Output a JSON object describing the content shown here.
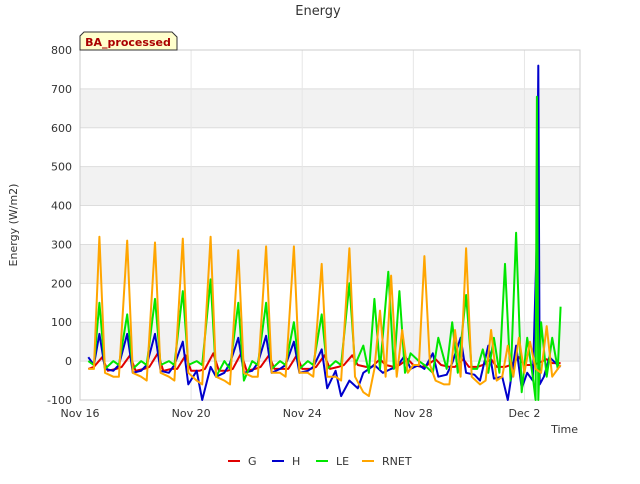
{
  "chart_data": {
    "type": "line",
    "title": "Energy",
    "xlabel": "Time",
    "ylabel": "Energy (W/m2)",
    "badge": "BA_processed",
    "xlim": [
      16,
      34
    ],
    "ylim": [
      -100,
      800
    ],
    "x_ticks": [
      {
        "value": 16,
        "label": "Nov 16"
      },
      {
        "value": 20,
        "label": "Nov 20"
      },
      {
        "value": 24,
        "label": "Nov 24"
      },
      {
        "value": 28,
        "label": "Nov 28"
      },
      {
        "value": 32,
        "label": "Dec 2"
      }
    ],
    "y_ticks": [
      -100,
      0,
      100,
      200,
      300,
      400,
      500,
      600,
      700,
      800
    ],
    "grid": true,
    "banded_background": true,
    "legend_position": "bottom",
    "series": [
      {
        "name": "G",
        "color": "#e00000",
        "legend_label": "G",
        "x": [
          16.3,
          16.5,
          16.8,
          17.0,
          17.3,
          17.5,
          17.8,
          18.0,
          18.3,
          18.5,
          18.8,
          19.0,
          19.3,
          19.5,
          19.8,
          20.0,
          20.3,
          20.5,
          20.8,
          21.0,
          21.3,
          21.5,
          21.8,
          22.0,
          22.3,
          22.5,
          22.8,
          23.0,
          23.3,
          23.5,
          23.8,
          24.0,
          24.3,
          24.5,
          24.8,
          25.0,
          25.3,
          25.5,
          25.8,
          26.0,
          26.3,
          26.5,
          26.8,
          27.0,
          27.3,
          27.5,
          27.8,
          28.0,
          28.3,
          28.5,
          28.8,
          29.0,
          29.3,
          29.5,
          29.8,
          30.0,
          30.3,
          30.5,
          30.8,
          31.0,
          31.3,
          31.5,
          31.8,
          32.0,
          32.3,
          32.5,
          32.8,
          33.0,
          33.3
        ],
        "y": [
          -20,
          -15,
          10,
          -25,
          -20,
          -15,
          15,
          -25,
          -20,
          -15,
          20,
          -25,
          -20,
          -20,
          15,
          -25,
          -25,
          -20,
          20,
          -25,
          -25,
          -20,
          20,
          -25,
          -20,
          -15,
          15,
          -20,
          -20,
          -20,
          15,
          -20,
          -20,
          -15,
          15,
          -20,
          -15,
          -10,
          15,
          -10,
          -15,
          -15,
          5,
          -10,
          -15,
          -10,
          5,
          -10,
          -15,
          -10,
          5,
          -10,
          -15,
          -15,
          5,
          -15,
          -15,
          -10,
          5,
          -15,
          -15,
          -10,
          10,
          -10,
          -10,
          -5,
          5,
          -5,
          -5
        ]
      },
      {
        "name": "H",
        "color": "#0000cc",
        "legend_label": "H",
        "x": [
          16.3,
          16.5,
          16.7,
          16.9,
          17.2,
          17.4,
          17.7,
          17.9,
          18.2,
          18.4,
          18.7,
          18.9,
          19.2,
          19.4,
          19.7,
          19.9,
          20.2,
          20.4,
          20.7,
          20.9,
          21.2,
          21.4,
          21.7,
          21.9,
          22.2,
          22.4,
          22.7,
          22.9,
          23.2,
          23.4,
          23.7,
          23.9,
          24.2,
          24.4,
          24.7,
          24.9,
          25.2,
          25.4,
          25.7,
          26.0,
          26.2,
          26.4,
          26.6,
          26.9,
          27.2,
          27.4,
          27.7,
          27.9,
          28.2,
          28.4,
          28.7,
          28.9,
          29.2,
          29.4,
          29.7,
          29.9,
          30.2,
          30.4,
          30.7,
          30.9,
          31.2,
          31.4,
          31.7,
          31.9,
          32.1,
          32.3,
          32.45,
          32.5,
          32.55,
          32.7,
          32.9,
          33.2,
          33.3
        ],
        "y": [
          10,
          -10,
          70,
          -20,
          -25,
          -10,
          70,
          -30,
          -25,
          -10,
          70,
          -25,
          -30,
          -10,
          50,
          -60,
          -25,
          -100,
          -15,
          -40,
          -30,
          -5,
          60,
          -30,
          -25,
          -5,
          65,
          -30,
          -20,
          -10,
          50,
          -30,
          -25,
          -15,
          30,
          -70,
          -25,
          -90,
          -50,
          -70,
          -30,
          -20,
          -10,
          -30,
          -20,
          -15,
          15,
          -20,
          -10,
          -20,
          20,
          -40,
          -35,
          -5,
          60,
          -30,
          -35,
          -50,
          40,
          -45,
          -40,
          -100,
          40,
          -70,
          -30,
          -50,
          320,
          760,
          -60,
          -40,
          10,
          -10,
          -15
        ]
      },
      {
        "name": "LE",
        "color": "#00e600",
        "legend_label": "LE",
        "x": [
          16.3,
          16.5,
          16.7,
          16.9,
          17.2,
          17.4,
          17.7,
          17.9,
          18.2,
          18.4,
          18.7,
          18.9,
          19.2,
          19.4,
          19.7,
          19.9,
          20.2,
          20.4,
          20.7,
          20.9,
          21.2,
          21.4,
          21.7,
          21.9,
          22.2,
          22.4,
          22.7,
          22.9,
          23.2,
          23.4,
          23.7,
          23.9,
          24.2,
          24.4,
          24.7,
          24.9,
          25.2,
          25.4,
          25.7,
          25.9,
          26.2,
          26.4,
          26.6,
          26.8,
          27.1,
          27.3,
          27.5,
          27.7,
          27.9,
          28.2,
          28.4,
          28.7,
          28.9,
          29.2,
          29.4,
          29.6,
          29.9,
          30.1,
          30.3,
          30.5,
          30.7,
          30.9,
          31.1,
          31.3,
          31.5,
          31.7,
          31.9,
          32.1,
          32.3,
          32.4,
          32.45,
          32.5,
          32.6,
          32.8,
          33.0,
          33.2,
          33.3
        ],
        "y": [
          0,
          -10,
          150,
          -20,
          0,
          -10,
          120,
          -20,
          0,
          -10,
          160,
          -10,
          0,
          -10,
          180,
          -10,
          0,
          -10,
          210,
          -40,
          0,
          -20,
          150,
          -50,
          0,
          -10,
          150,
          -20,
          0,
          -10,
          100,
          -20,
          0,
          -10,
          120,
          -20,
          0,
          -10,
          200,
          -10,
          40,
          -30,
          160,
          -20,
          230,
          -20,
          180,
          -30,
          20,
          0,
          -10,
          -30,
          60,
          -20,
          100,
          -30,
          170,
          -20,
          -20,
          30,
          -30,
          60,
          -30,
          250,
          -50,
          330,
          -80,
          60,
          -40,
          -100,
          680,
          -100,
          100,
          -40,
          60,
          -20,
          140
        ]
      },
      {
        "name": "RNET",
        "color": "#ffa500",
        "legend_label": "RNET",
        "x": [
          16.3,
          16.5,
          16.7,
          16.9,
          17.2,
          17.4,
          17.7,
          17.9,
          18.2,
          18.4,
          18.7,
          18.9,
          19.2,
          19.4,
          19.7,
          19.9,
          20.2,
          20.4,
          20.7,
          20.9,
          21.2,
          21.4,
          21.7,
          21.9,
          22.2,
          22.4,
          22.7,
          22.9,
          23.2,
          23.4,
          23.7,
          23.9,
          24.2,
          24.4,
          24.7,
          24.9,
          25.2,
          25.4,
          25.7,
          25.9,
          26.2,
          26.4,
          26.6,
          26.8,
          27.0,
          27.2,
          27.4,
          27.6,
          27.8,
          28.0,
          28.2,
          28.4,
          28.6,
          28.8,
          29.1,
          29.3,
          29.5,
          29.7,
          29.9,
          30.1,
          30.4,
          30.6,
          30.8,
          31.0,
          31.2,
          31.4,
          31.6,
          31.8,
          32.0,
          32.2,
          32.4,
          32.6,
          32.8,
          33.0,
          33.3
        ],
        "y": [
          -20,
          -20,
          320,
          -30,
          -40,
          -40,
          310,
          -30,
          -40,
          -50,
          305,
          -30,
          -40,
          -50,
          315,
          -30,
          -50,
          -60,
          320,
          -40,
          -50,
          -60,
          285,
          -30,
          -40,
          -40,
          295,
          -30,
          -30,
          -40,
          295,
          -30,
          -30,
          -40,
          250,
          -40,
          -40,
          -50,
          290,
          -40,
          -80,
          -90,
          -20,
          130,
          -40,
          220,
          -40,
          80,
          -30,
          -10,
          -10,
          270,
          -10,
          -50,
          -60,
          -60,
          80,
          -40,
          290,
          -40,
          -60,
          -50,
          80,
          -50,
          -40,
          40,
          -40,
          60,
          -30,
          50,
          -20,
          -30,
          90,
          -40,
          -10
        ]
      }
    ]
  }
}
